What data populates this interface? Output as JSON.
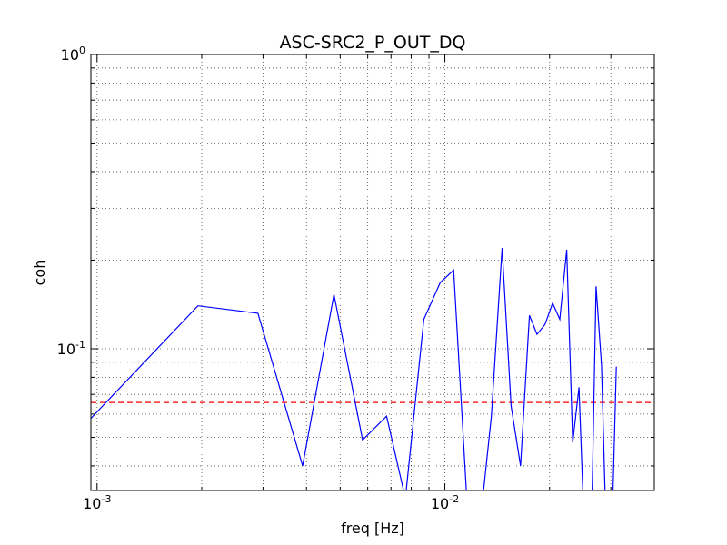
{
  "chart_data": {
    "type": "line",
    "title": "ASC-SRC2_P_OUT_DQ",
    "xlabel": "freq [Hz]",
    "ylabel": "coh",
    "xscale": "log",
    "yscale": "log",
    "xlim": [
      0.00096,
      0.04
    ],
    "ylim": [
      0.033,
      1.0
    ],
    "grid": true,
    "x_ticks": [
      {
        "value": 0.001,
        "base": "10",
        "exp": "-3"
      },
      {
        "value": 0.01,
        "base": "10",
        "exp": "-2"
      }
    ],
    "y_ticks": [
      {
        "value": 0.1,
        "base": "10",
        "exp": "-1"
      },
      {
        "value": 1.0,
        "base": "10",
        "exp": "0"
      }
    ],
    "series": [
      {
        "color": "#0000ff",
        "x": [
          0.00096,
          0.00195,
          0.0029,
          0.0039,
          0.0048,
          0.0058,
          0.0068,
          0.0077,
          0.0087,
          0.0097,
          0.0106,
          0.0116,
          0.0126,
          0.0136,
          0.0146,
          0.0155,
          0.0165,
          0.0175,
          0.0184,
          0.0194,
          0.0204,
          0.0214,
          0.0224,
          0.0233,
          0.0243,
          0.0253,
          0.0263,
          0.0272,
          0.0282,
          0.0292,
          0.0301,
          0.0311
        ],
        "y": [
          0.058,
          0.14,
          0.132,
          0.04,
          0.153,
          0.049,
          0.059,
          0.031,
          0.126,
          0.168,
          0.185,
          0.029,
          0.025,
          0.059,
          0.22,
          0.064,
          0.04,
          0.13,
          0.112,
          0.121,
          0.143,
          0.126,
          0.217,
          0.048,
          0.074,
          0.02,
          0.02,
          0.163,
          0.088,
          0.02,
          0.02,
          0.087
        ]
      }
    ],
    "threshold": {
      "value": 0.0657,
      "color": "#ff0000",
      "style": "dashed"
    }
  }
}
